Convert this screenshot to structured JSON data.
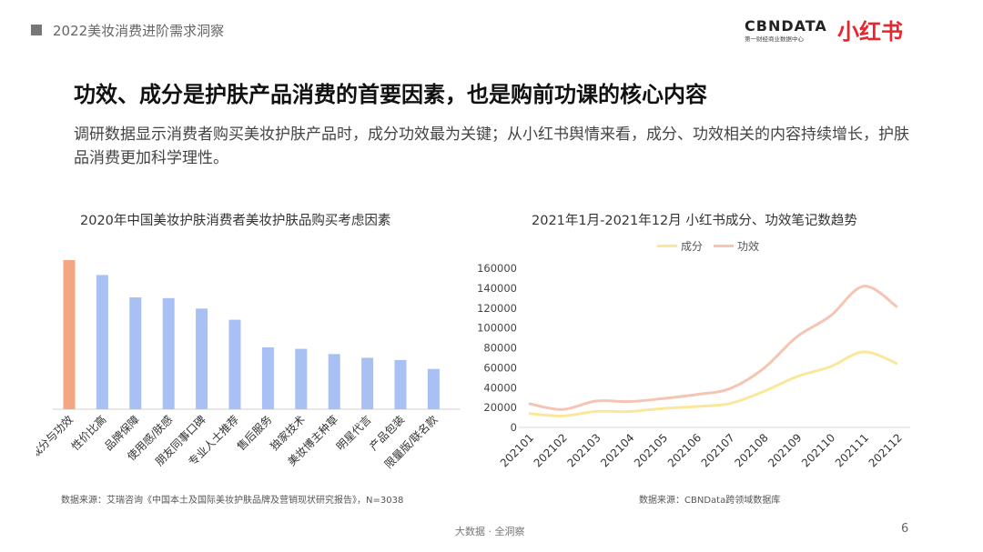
{
  "header": {
    "section": "2022美妆消费进阶需求洞察"
  },
  "logos": {
    "cbn_main": "CBNDATA",
    "cbn_sub": "第一财经商业数据中心",
    "xhs": "小红书"
  },
  "title": "功效、成分是护肤产品消费的首要因素，也是购前功课的核心内容",
  "subtitle": "调研数据显示消费者购买美妆护肤产品时，成分功效最为关键；从小红书舆情来看，成分、功效相关的内容持续增长，护肤品消费更加科学理性。",
  "colors": {
    "highlight": "#f4a582",
    "bar": "#a9c0f4",
    "ingredient": "#fbe79a",
    "efficacy": "#f6c4b2"
  },
  "chart_data": [
    {
      "type": "bar",
      "title": "2020年中国美妆护肤消费者美妆护肤品购买考虑因素",
      "categories": [
        "成分与功效",
        "性价比高",
        "品牌保障",
        "使用感/肤感",
        "朋友同事口碑",
        "专业人士推荐",
        "售后服务",
        "独家技术",
        "美妆博主种草",
        "明星代言",
        "产品包装",
        "限量版/联名款"
      ],
      "values": [
        100,
        90,
        75,
        74.5,
        67.5,
        60,
        41.5,
        40.5,
        37,
        34.5,
        33,
        27
      ],
      "highlight_index": 0,
      "ylim": [
        0,
        100
      ],
      "source": "数据来源：艾瑞咨询《中国本土及国际美妆护肤品牌及营销现状研究报告》，N=3038"
    },
    {
      "type": "line",
      "title": "2021年1月-2021年12月 小红书成分、功效笔记数趋势",
      "x": [
        "202101",
        "202102",
        "202103",
        "202104",
        "202105",
        "202106",
        "202107",
        "202108",
        "202109",
        "202110",
        "202111",
        "202112"
      ],
      "series": [
        {
          "name": "成分",
          "values": [
            14000,
            11500,
            16000,
            16000,
            19000,
            21000,
            24000,
            36000,
            51000,
            61000,
            76000,
            64000
          ]
        },
        {
          "name": "功效",
          "values": [
            24000,
            18000,
            26500,
            26000,
            29000,
            33000,
            39000,
            59000,
            91000,
            112000,
            142000,
            121000
          ]
        }
      ],
      "yticks": [
        0,
        20000,
        40000,
        60000,
        80000,
        100000,
        120000,
        140000,
        160000
      ],
      "ylim": [
        0,
        160000
      ],
      "source": "数据来源：CBNData跨领域数据库"
    }
  ],
  "footer": {
    "text": "大数据 · 全洞察",
    "page": "6"
  }
}
